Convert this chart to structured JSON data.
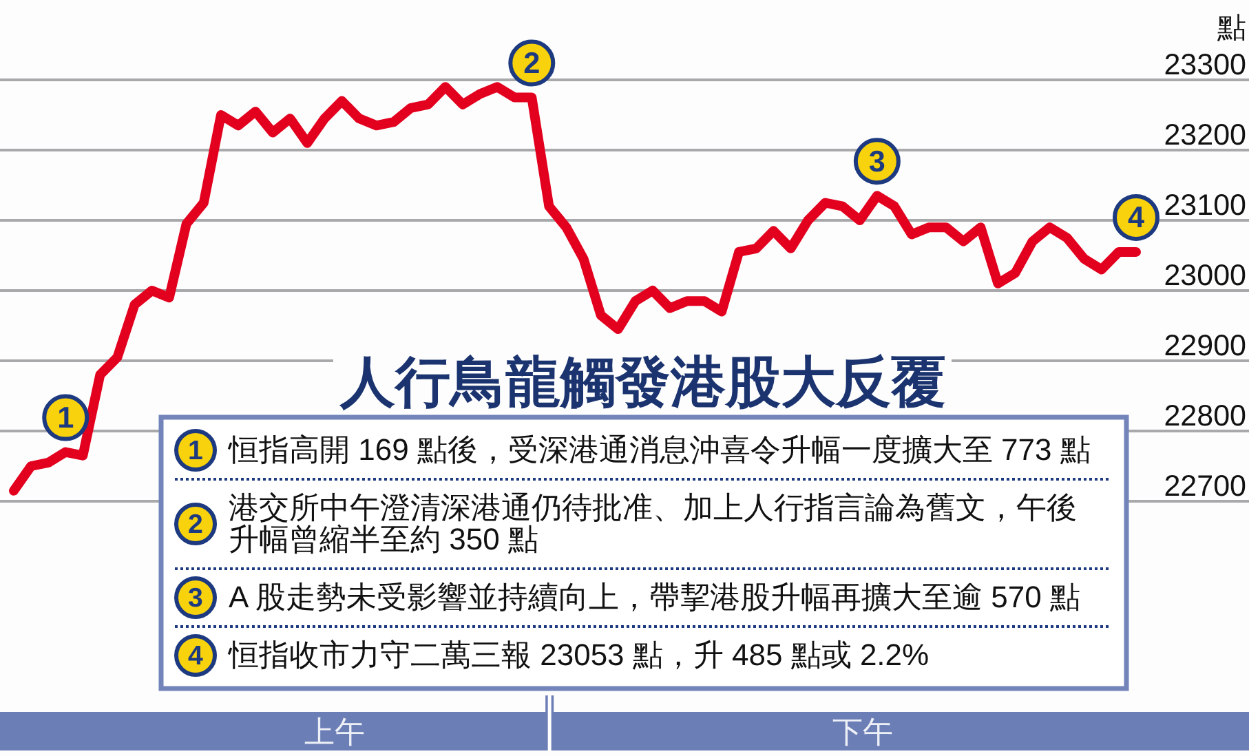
{
  "chart_data": {
    "type": "line",
    "title": "人行鳥龍觸發港股大反覆",
    "ylabel": "點",
    "categories": [
      null,
      null,
      null,
      null,
      null,
      null,
      null,
      null,
      null,
      null,
      null,
      null,
      null,
      null,
      null,
      null,
      null,
      null,
      null,
      null,
      null,
      null,
      null,
      null,
      null,
      null,
      null,
      null,
      null,
      null,
      null,
      null,
      null,
      null,
      null,
      null,
      null,
      null,
      null,
      null,
      null,
      null,
      null,
      null,
      null,
      null,
      null,
      null,
      null,
      null,
      null,
      null,
      null,
      null,
      null,
      null,
      null,
      null,
      null,
      null,
      null,
      null,
      null,
      null,
      null,
      null
    ],
    "values": [
      22715,
      22750,
      22755,
      22770,
      22765,
      22880,
      22905,
      22980,
      23000,
      22990,
      23095,
      23125,
      23250,
      23235,
      23255,
      23225,
      23245,
      23210,
      23245,
      23270,
      23245,
      23235,
      23240,
      23260,
      23265,
      23290,
      23265,
      23280,
      23290,
      23275,
      23275,
      23120,
      23090,
      23045,
      22965,
      22945,
      22985,
      23000,
      22975,
      22985,
      22985,
      22970,
      23055,
      23060,
      23085,
      23060,
      23100,
      23125,
      23120,
      23100,
      23135,
      23120,
      23080,
      23090,
      23090,
      23070,
      23090,
      23010,
      23025,
      23070,
      23090,
      23075,
      23045,
      23030,
      23055,
      23055
    ],
    "color": "#e3001f",
    "line_style": "solid",
    "ylim": [
      22700,
      23300
    ],
    "yticks": [
      22700,
      22800,
      22900,
      23000,
      23100,
      23200,
      23300
    ],
    "grid": "y",
    "tick_labels": "y",
    "annotations": [
      {
        "text": "1",
        "y": 22770
      },
      {
        "text": "2",
        "y": 23275
      },
      {
        "text": "3",
        "y": 23135
      },
      {
        "text": "4",
        "y": 23055
      },
      "恒指高開 169 點後，受深港通消息沖喜令升幅一度擴大至 773 點",
      "港交所中午澄清深港通仍待批准、加上人行指言論為舊文，午後升幅曾縮半至約 350 點",
      "A 股走勢未受影響並持續向上，帶挈港股升幅再擴大至逾 570 點",
      "恒指收市力守二萬三報 23053 點，升 485 點或 2.2%",
      "上午",
      "下午"
    ]
  }
}
